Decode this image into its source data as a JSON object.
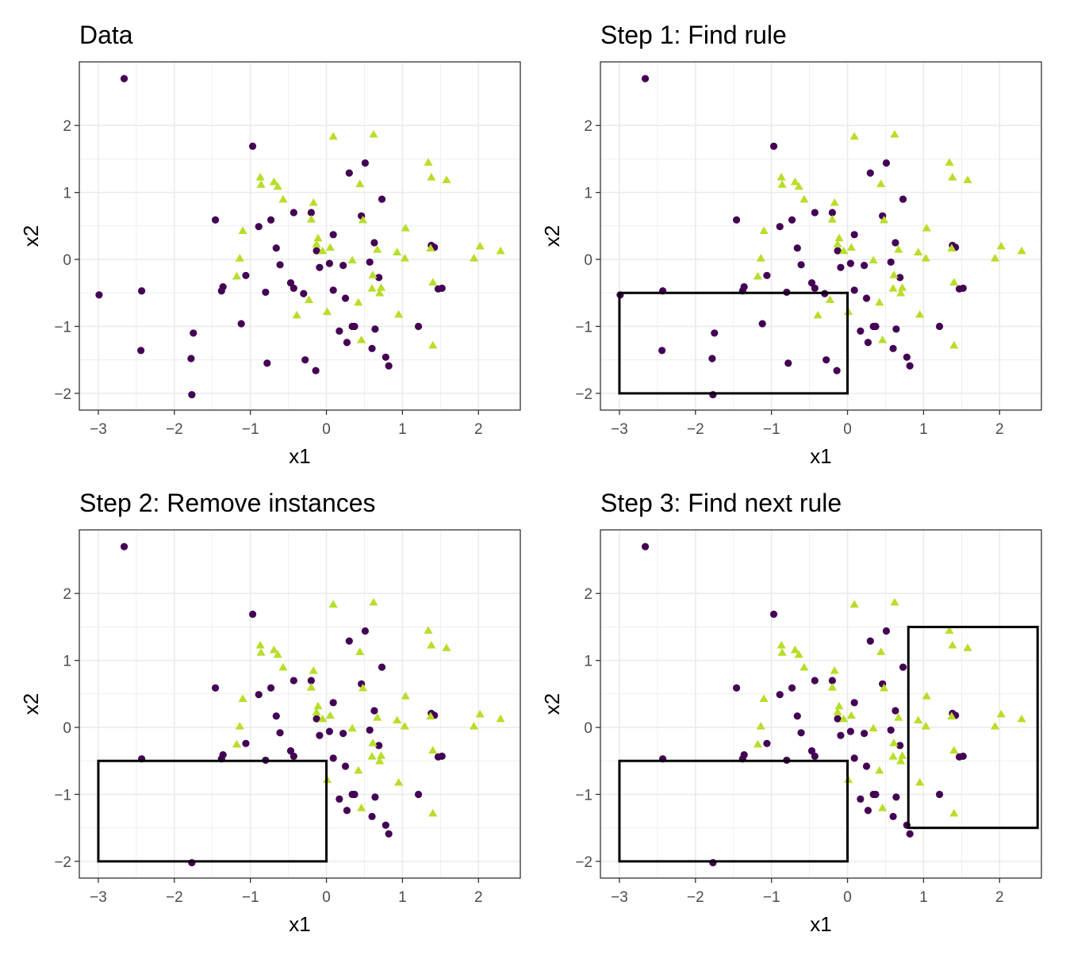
{
  "colors": {
    "class_a": "#440154",
    "class_b": "#b8de29",
    "box": "#000000"
  },
  "chart_data": {
    "type": "scatter",
    "xlabel": "x1",
    "ylabel": "x2",
    "xlim": [
      -3.25,
      2.55
    ],
    "ylim": [
      -2.25,
      2.95
    ],
    "x_ticks": [
      -3,
      -2,
      -1,
      0,
      1,
      2
    ],
    "y_ticks": [
      -2,
      -1,
      0,
      1,
      2
    ],
    "grid": true,
    "panels": [
      {
        "title": "Data",
        "removed": false,
        "rules": []
      },
      {
        "title": "Step 1: Find rule",
        "removed": false,
        "rules": [
          {
            "x": [
              -3,
              0
            ],
            "y": [
              -2,
              -0.5
            ]
          }
        ]
      },
      {
        "title": "Step 2: Remove instances",
        "removed": true,
        "rules": [
          {
            "x": [
              -3,
              0
            ],
            "y": [
              -2,
              -0.5
            ]
          }
        ]
      },
      {
        "title": "Step 3: Find next rule",
        "removed": true,
        "rules": [
          {
            "x": [
              -3,
              0
            ],
            "y": [
              -2,
              -0.5
            ]
          },
          {
            "x": [
              0.8,
              2.5
            ],
            "y": [
              -1.5,
              1.5
            ]
          }
        ]
      }
    ],
    "series": [
      {
        "marker": "circle",
        "color": "#440154",
        "points": [
          [
            -2.66,
            2.7
          ],
          [
            -2.99,
            -0.53
          ],
          [
            -2.43,
            -0.47
          ],
          [
            -2.44,
            -1.36
          ],
          [
            -1.78,
            -1.48
          ],
          [
            -1.75,
            -1.1
          ],
          [
            -1.77,
            -2.02
          ],
          [
            -1.46,
            0.59
          ],
          [
            -1.38,
            -0.47
          ],
          [
            -1.36,
            -0.41
          ],
          [
            -1.12,
            -0.96
          ],
          [
            -1.06,
            -0.24
          ],
          [
            -0.97,
            1.69
          ],
          [
            -0.89,
            0.49
          ],
          [
            -0.8,
            -0.49
          ],
          [
            -0.78,
            -1.55
          ],
          [
            -0.73,
            0.59
          ],
          [
            -0.66,
            0.17
          ],
          [
            -0.61,
            -0.08
          ],
          [
            -0.47,
            -0.35
          ],
          [
            -0.43,
            0.7
          ],
          [
            -0.43,
            -0.43
          ],
          [
            -0.3,
            -0.51
          ],
          [
            -0.28,
            -1.5
          ],
          [
            -0.2,
            0.7
          ],
          [
            -0.13,
            0.13
          ],
          [
            -0.14,
            -1.66
          ],
          [
            -0.09,
            -0.12
          ],
          [
            0.04,
            -0.06
          ],
          [
            0.09,
            0.37
          ],
          [
            0.09,
            -0.46
          ],
          [
            0.17,
            -1.07
          ],
          [
            0.22,
            -0.09
          ],
          [
            0.25,
            -0.58
          ],
          [
            0.27,
            -1.24
          ],
          [
            0.3,
            1.29
          ],
          [
            0.34,
            -1.0
          ],
          [
            0.37,
            -1.0
          ],
          [
            0.46,
            0.65
          ],
          [
            0.51,
            1.44
          ],
          [
            0.57,
            -0.04
          ],
          [
            0.6,
            -1.33
          ],
          [
            0.63,
            0.25
          ],
          [
            0.64,
            -1.04
          ],
          [
            0.69,
            -0.27
          ],
          [
            0.73,
            0.9
          ],
          [
            0.78,
            -1.46
          ],
          [
            0.82,
            -1.59
          ],
          [
            1.21,
            -1.0
          ],
          [
            1.38,
            0.21
          ],
          [
            1.42,
            0.18
          ],
          [
            1.47,
            -0.44
          ],
          [
            1.52,
            -0.43
          ]
        ]
      },
      {
        "marker": "triangle",
        "color": "#b8de29",
        "points": [
          [
            0.09,
            1.83
          ],
          [
            0.62,
            1.86
          ],
          [
            -0.87,
            1.22
          ],
          [
            -0.86,
            1.11
          ],
          [
            -1.1,
            0.42
          ],
          [
            -1.14,
            0.01
          ],
          [
            -1.18,
            -0.26
          ],
          [
            -0.69,
            1.15
          ],
          [
            -0.64,
            1.08
          ],
          [
            -0.57,
            0.89
          ],
          [
            -0.39,
            -0.84
          ],
          [
            -0.23,
            -0.61
          ],
          [
            -0.17,
            0.84
          ],
          [
            -0.2,
            0.59
          ],
          [
            -0.11,
            0.31
          ],
          [
            -0.13,
            0.22
          ],
          [
            -0.05,
            0.12
          ],
          [
            0.01,
            -0.79
          ],
          [
            0.05,
            0.17
          ],
          [
            0.34,
            -0.02
          ],
          [
            0.42,
            -0.65
          ],
          [
            0.44,
            1.12
          ],
          [
            0.46,
            -1.21
          ],
          [
            0.48,
            0.58
          ],
          [
            0.6,
            -0.44
          ],
          [
            0.61,
            -0.24
          ],
          [
            0.67,
            0.14
          ],
          [
            0.7,
            -0.51
          ],
          [
            0.72,
            -0.43
          ],
          [
            0.93,
            0.1
          ],
          [
            0.95,
            -0.83
          ],
          [
            1.03,
            0.01
          ],
          [
            1.04,
            0.46
          ],
          [
            1.34,
            1.44
          ],
          [
            1.37,
            0.16
          ],
          [
            1.38,
            1.22
          ],
          [
            1.4,
            -1.29
          ],
          [
            1.4,
            -0.35
          ],
          [
            1.58,
            1.18
          ],
          [
            1.94,
            0.01
          ],
          [
            2.02,
            0.19
          ],
          [
            2.29,
            0.12
          ]
        ]
      }
    ]
  }
}
